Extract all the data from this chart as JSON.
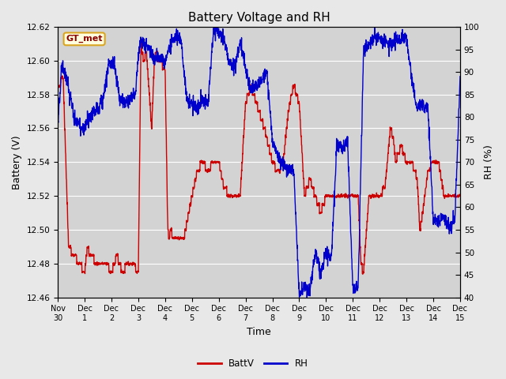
{
  "title": "Battery Voltage and RH",
  "xlabel": "Time",
  "ylabel_left": "Battery (V)",
  "ylabel_right": "RH (%)",
  "label_tag": "GT_met",
  "ylim_left": [
    12.46,
    12.62
  ],
  "ylim_right": [
    40,
    100
  ],
  "yticks_left": [
    12.46,
    12.48,
    12.5,
    12.52,
    12.54,
    12.56,
    12.58,
    12.6,
    12.62
  ],
  "yticks_right": [
    40,
    45,
    50,
    55,
    60,
    65,
    70,
    75,
    80,
    85,
    90,
    95,
    100
  ],
  "xtick_labels": [
    "Nov 30",
    "Dec 1",
    "Dec 2",
    "Dec 3",
    "Dec 4",
    "Dec 5",
    "Dec 6",
    "Dec 7",
    "Dec 8",
    "Dec 9",
    "Dec 10",
    "Dec 11",
    "Dec 12",
    "Dec 13",
    "Dec 14",
    "Dec 15"
  ],
  "xtick_labels_display": [
    "Nov 30",
    "Dec 1",
    "Dec 2",
    "Dec 3",
    "Dec 4",
    "Dec 5",
    "Dec 6",
    "Dec 7",
    "Dec 8",
    "Dec 9",
    "Dec 10",
    "Dec 11",
    "Dec 12",
    "Dec 13",
    "Dec 14",
    "Dec 15"
  ],
  "fig_bg_color": "#e8e8e8",
  "plot_bg_color": "#d3d3d3",
  "batt_color": "#cc0000",
  "rh_color": "#0000cc",
  "legend_batt": "BattV",
  "legend_rh": "RH",
  "title_fontsize": 11,
  "axis_fontsize": 9,
  "tick_fontsize": 7.5,
  "linewidth": 1.0,
  "n_days": 15.0,
  "n_points": 2000,
  "batt_seg_t": [
    0,
    0.2,
    0.4,
    0.6,
    0.8,
    1.0,
    1.1,
    1.2,
    1.5,
    1.8,
    2.0,
    2.2,
    2.4,
    2.6,
    2.8,
    3.0,
    3.1,
    3.2,
    3.3,
    3.5,
    3.6,
    3.65,
    3.8,
    4.0,
    4.1,
    4.15,
    4.2,
    4.3,
    4.5,
    4.7,
    5.0,
    5.2,
    5.4,
    5.6,
    5.8,
    6.0,
    6.2,
    6.4,
    6.6,
    6.8,
    7.0,
    7.1,
    7.2,
    7.3,
    7.5,
    7.7,
    8.0,
    8.2,
    8.4,
    8.6,
    8.7,
    8.8,
    9.0,
    9.2,
    9.4,
    9.6,
    9.8,
    10.0,
    10.2,
    10.4,
    10.6,
    10.8,
    11.0,
    11.2,
    11.3,
    11.4,
    11.6,
    11.8,
    12.0,
    12.2,
    12.4,
    12.5,
    12.6,
    12.8,
    13.0,
    13.2,
    13.4,
    13.5,
    13.6,
    13.8,
    14.0,
    14.2,
    14.4,
    14.6,
    14.8,
    15.0
  ],
  "batt_seg_v": [
    12.585,
    12.59,
    12.49,
    12.485,
    12.48,
    12.475,
    12.49,
    12.485,
    12.48,
    12.48,
    12.475,
    12.485,
    12.475,
    12.48,
    12.48,
    12.475,
    12.61,
    12.6,
    12.605,
    12.56,
    12.6,
    12.605,
    12.6,
    12.595,
    12.5,
    12.495,
    12.5,
    12.495,
    12.495,
    12.495,
    12.52,
    12.535,
    12.54,
    12.535,
    12.54,
    12.54,
    12.525,
    12.52,
    12.52,
    12.52,
    12.575,
    12.58,
    12.585,
    12.58,
    12.57,
    12.56,
    12.54,
    12.535,
    12.54,
    12.57,
    12.58,
    12.585,
    12.575,
    12.52,
    12.53,
    12.52,
    12.51,
    12.52,
    12.52,
    12.52,
    12.52,
    12.52,
    12.52,
    12.52,
    12.48,
    12.475,
    12.52,
    12.52,
    12.52,
    12.525,
    12.56,
    12.555,
    12.54,
    12.55,
    12.54,
    12.54,
    12.53,
    12.5,
    12.51,
    12.535,
    12.54,
    12.54,
    12.52,
    12.52,
    12.52,
    12.52
  ],
  "rh_seg_t": [
    0,
    0.15,
    0.35,
    0.6,
    0.9,
    1.1,
    1.3,
    1.5,
    1.7,
    1.9,
    2.1,
    2.3,
    2.5,
    2.7,
    2.9,
    3.0,
    3.1,
    3.2,
    3.4,
    3.6,
    3.8,
    4.0,
    4.2,
    4.4,
    4.6,
    4.8,
    5.0,
    5.2,
    5.4,
    5.6,
    5.8,
    6.0,
    6.2,
    6.4,
    6.6,
    6.8,
    7.0,
    7.2,
    7.4,
    7.6,
    7.8,
    8.0,
    8.2,
    8.4,
    8.6,
    8.8,
    9.0,
    9.2,
    9.4,
    9.6,
    9.8,
    10.0,
    10.2,
    10.4,
    10.6,
    10.8,
    11.0,
    11.2,
    11.4,
    11.6,
    11.8,
    12.0,
    12.2,
    12.4,
    12.6,
    12.8,
    13.0,
    13.2,
    13.4,
    13.6,
    13.8,
    14.0,
    14.2,
    14.4,
    14.6,
    14.8,
    15.0
  ],
  "rh_seg_v": [
    78,
    92,
    88,
    80,
    77,
    79,
    81,
    82,
    84,
    92,
    92,
    84,
    83,
    84,
    85,
    94,
    97,
    96,
    95,
    93,
    93,
    92,
    96,
    98,
    97,
    84,
    83,
    82,
    84,
    83,
    99,
    99,
    97,
    92,
    91,
    97,
    91,
    86,
    87,
    88,
    90,
    75,
    71,
    70,
    68,
    68,
    41,
    42,
    42,
    50,
    45,
    50,
    49,
    74,
    73,
    75,
    42,
    42,
    95,
    96,
    98,
    97,
    97,
    96,
    97,
    97,
    98,
    88,
    82,
    83,
    82,
    57,
    57,
    58,
    55,
    57,
    88
  ]
}
